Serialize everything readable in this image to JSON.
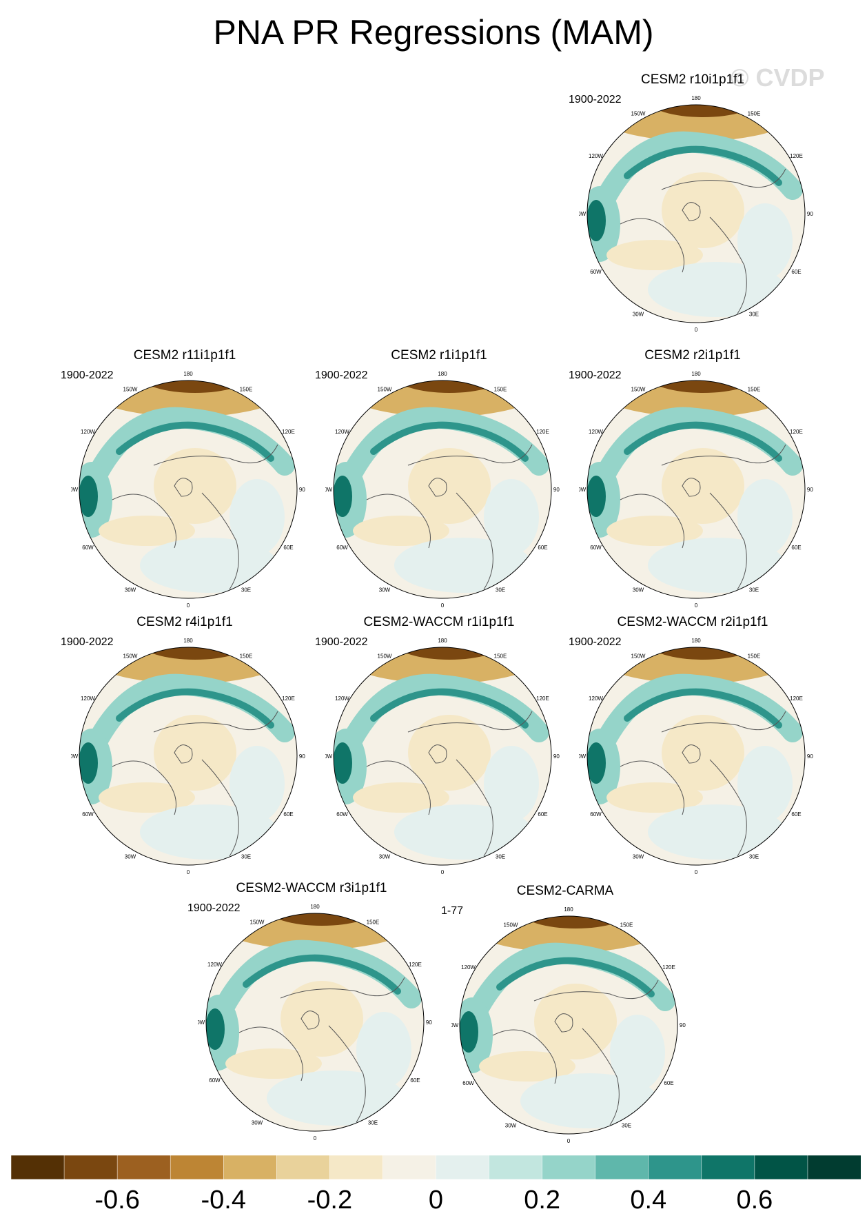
{
  "title": "PNA PR Regressions (MAM)",
  "watermark": "© CVDP",
  "panels": [
    {
      "name": "CESM2 r10i1p1f1",
      "period": "1900-2022"
    },
    {
      "name": "CESM2 r11i1p1f1",
      "period": "1900-2022"
    },
    {
      "name": "CESM2 r1i1p1f1",
      "period": "1900-2022"
    },
    {
      "name": "CESM2 r2i1p1f1",
      "period": "1900-2022"
    },
    {
      "name": "CESM2 r4i1p1f1",
      "period": "1900-2022"
    },
    {
      "name": "CESM2-WACCM r1i1p1f1",
      "period": "1900-2022"
    },
    {
      "name": "CESM2-WACCM r2i1p1f1",
      "period": "1900-2022"
    },
    {
      "name": "CESM2-WACCM r3i1p1f1",
      "period": "1900-2022"
    },
    {
      "name": "CESM2-CARMA",
      "period": "1-77"
    }
  ],
  "longitude_labels": [
    "180",
    "150E",
    "120E",
    "90E",
    "60E",
    "30E",
    "0",
    "30W",
    "60W",
    "90W",
    "120W",
    "150W"
  ],
  "colorbar": {
    "colors": [
      "#543005",
      "#7a4710",
      "#9c6020",
      "#bd8534",
      "#d8b164",
      "#e9d29b",
      "#f5e8c7",
      "#f5f1e6",
      "#e4f0ee",
      "#c2e6df",
      "#95d4c9",
      "#5fb7ab",
      "#2e958b",
      "#0f7568",
      "#015446",
      "#013c30"
    ],
    "tick_labels": [
      "-0.6",
      "-0.4",
      "-0.2",
      "0",
      "0.2",
      "0.4",
      "0.6"
    ]
  }
}
